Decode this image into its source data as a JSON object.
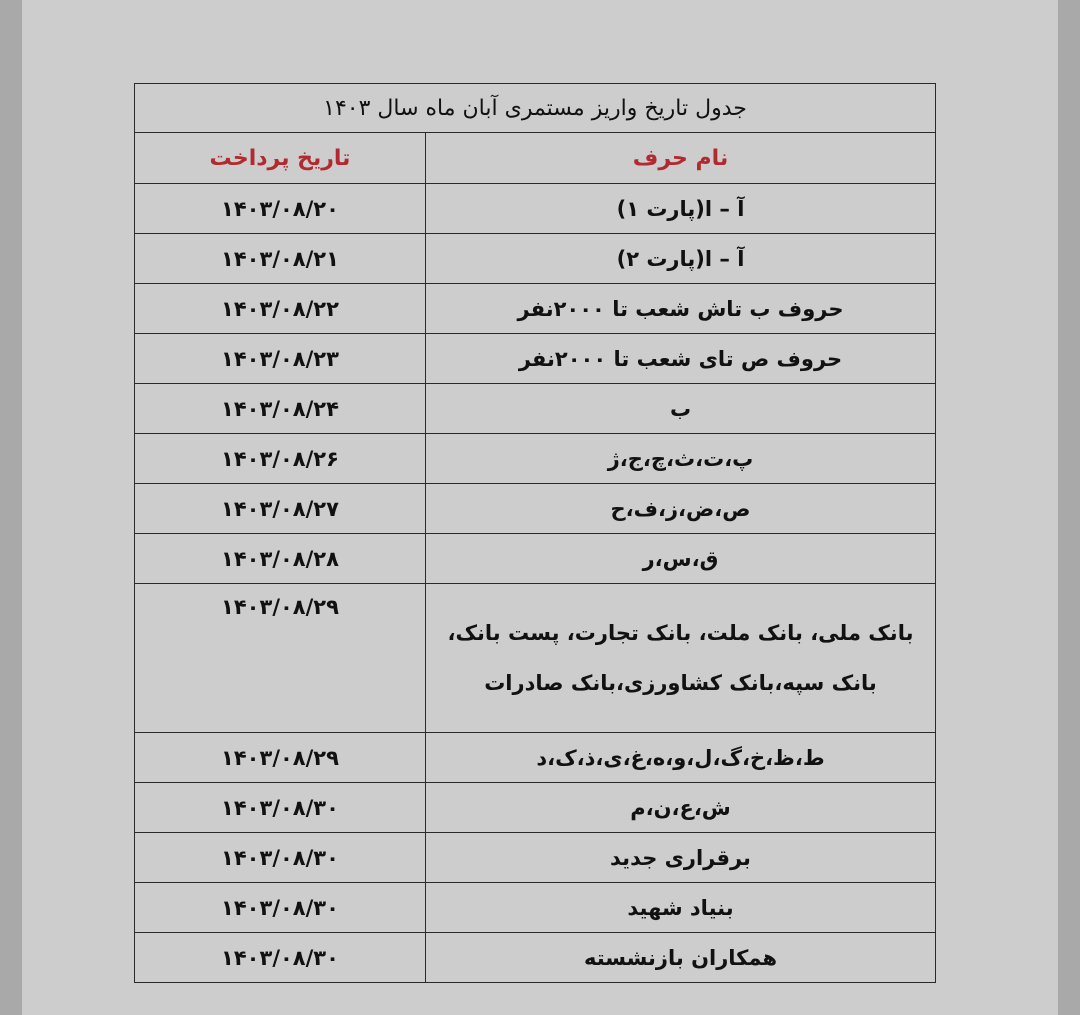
{
  "title": "جدول تاریخ واریز مستمری آبان ماه سال ۱۴۰۳",
  "headers": {
    "name": "نام حرف",
    "date": "تاریخ پرداخت"
  },
  "colors": {
    "header_text": "#b02a30",
    "page": "#cdcdcd"
  },
  "rows": [
    {
      "name": "آ – ا(پارت ۱)",
      "date": "۱۴۰۳/۰۸/۲۰"
    },
    {
      "name": "آ – ا(پارت ۲)",
      "date": "۱۴۰۳/۰۸/۲۱"
    },
    {
      "name": "حروف ب تاش شعب تا ۲۰۰۰نفر",
      "date": "۱۴۰۳/۰۸/۲۲"
    },
    {
      "name": "حروف ص تای شعب تا ۲۰۰۰نفر",
      "date": "۱۴۰۳/۰۸/۲۳"
    },
    {
      "name": "ب",
      "date": "۱۴۰۳/۰۸/۲۴"
    },
    {
      "name": "پ،ت،ث،چ،ج،ژ",
      "date": "۱۴۰۳/۰۸/۲۶"
    },
    {
      "name": "ص،ض،ز،ف،ح",
      "date": "۱۴۰۳/۰۸/۲۷"
    },
    {
      "name": "ق،س،ر",
      "date": "۱۴۰۳/۰۸/۲۸"
    },
    {
      "name": "بانک ملی، بانک ملت، بانک تجارت، پست بانک، بانک سپه،بانک کشاورزی،بانک صادرات",
      "date": "۱۴۰۳/۰۸/۲۹"
    },
    {
      "name": "ط،ظ،خ،گ،ل،و،ه،غ،ی،ذ،ک،د",
      "date": "۱۴۰۳/۰۸/۲۹"
    },
    {
      "name": "ش،ع،ن،م",
      "date": "۱۴۰۳/۰۸/۳۰"
    },
    {
      "name": "برقراری جدید",
      "date": "۱۴۰۳/۰۸/۳۰"
    },
    {
      "name": "بنیاد شهید",
      "date": "۱۴۰۳/۰۸/۳۰"
    },
    {
      "name": "همکاران بازنشسته",
      "date": "۱۴۰۳/۰۸/۳۰"
    }
  ]
}
